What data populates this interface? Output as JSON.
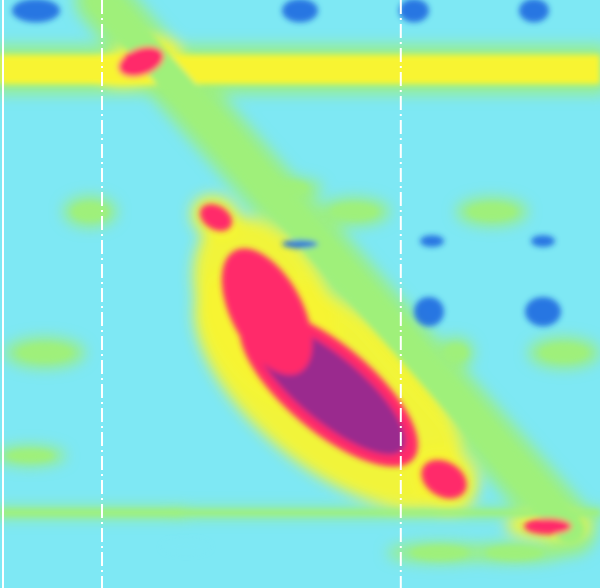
{
  "chart_data": {
    "type": "heatmap",
    "title": "",
    "xlabel": "",
    "ylabel": "",
    "legend": "none",
    "grid": false,
    "colormap": [
      {
        "level": 0,
        "color": "#1e6ae0"
      },
      {
        "level": 0.2,
        "color": "#58c8f0"
      },
      {
        "level": 0.32,
        "color": "#7ee8f4"
      },
      {
        "level": 0.55,
        "color": "#9ff07a"
      },
      {
        "level": 0.7,
        "color": "#f8f430"
      },
      {
        "level": 0.82,
        "color": "#ff2a6a"
      },
      {
        "level": 1,
        "color": "#9a2a8e"
      }
    ],
    "vertical_markers": [
      {
        "x": 0.005,
        "style": "solid",
        "color": "#ffffff"
      },
      {
        "x": 0.17,
        "style": "dashed",
        "color": "#ffffff"
      },
      {
        "x": 0.668,
        "style": "dashed",
        "color": "#ffffff"
      }
    ],
    "features": [
      {
        "kind": "band",
        "x0": 0.0,
        "x1": 1.0,
        "y": 0.118,
        "thickness": 0.05,
        "level": 0.72
      },
      {
        "kind": "band",
        "x0": 0.0,
        "x1": 0.3,
        "y": 0.872,
        "thickness": 0.012,
        "level": 0.66
      },
      {
        "kind": "band",
        "x0": 0.3,
        "x1": 1.0,
        "y": 0.872,
        "thickness": 0.01,
        "level": 0.55
      },
      {
        "kind": "diagonal",
        "x0": 0.17,
        "y0": 0.0,
        "x1": 0.95,
        "y1": 0.9,
        "thickness": 0.035,
        "level": 0.62
      },
      {
        "kind": "blob",
        "x": 0.548,
        "y": 0.66,
        "rx": 0.16,
        "ry": 0.055,
        "angle": 40,
        "level": 1.0
      },
      {
        "kind": "blob",
        "x": 0.445,
        "y": 0.53,
        "rx": 0.1,
        "ry": 0.045,
        "angle": 62,
        "level": 0.95
      },
      {
        "kind": "blob",
        "x": 0.235,
        "y": 0.105,
        "rx": 0.02,
        "ry": 0.03,
        "angle": 70,
        "level": 0.96
      },
      {
        "kind": "blob",
        "x": 0.36,
        "y": 0.37,
        "rx": 0.025,
        "ry": 0.015,
        "angle": 30,
        "level": 0.86
      },
      {
        "kind": "blob",
        "x": 0.74,
        "y": 0.815,
        "rx": 0.035,
        "ry": 0.022,
        "angle": 30,
        "level": 0.84
      },
      {
        "kind": "blob",
        "x": 0.913,
        "y": 0.895,
        "rx": 0.012,
        "ry": 0.03,
        "angle": 90,
        "level": 0.86
      },
      {
        "kind": "blob",
        "x": 0.06,
        "y": 0.018,
        "rx": 0.04,
        "ry": 0.02,
        "angle": 0,
        "level": 0.05
      },
      {
        "kind": "blob",
        "x": 0.5,
        "y": 0.018,
        "rx": 0.03,
        "ry": 0.02,
        "angle": 0,
        "level": 0.05
      },
      {
        "kind": "blob",
        "x": 0.69,
        "y": 0.018,
        "rx": 0.025,
        "ry": 0.02,
        "angle": 0,
        "level": 0.05
      },
      {
        "kind": "blob",
        "x": 0.89,
        "y": 0.018,
        "rx": 0.025,
        "ry": 0.02,
        "angle": 0,
        "level": 0.05
      },
      {
        "kind": "blob",
        "x": 0.715,
        "y": 0.53,
        "rx": 0.025,
        "ry": 0.025,
        "angle": 0,
        "level": 0.1
      },
      {
        "kind": "blob",
        "x": 0.905,
        "y": 0.53,
        "rx": 0.03,
        "ry": 0.025,
        "angle": 0,
        "level": 0.1
      },
      {
        "kind": "blob",
        "x": 0.72,
        "y": 0.41,
        "rx": 0.02,
        "ry": 0.01,
        "angle": 0,
        "level": 0.12
      },
      {
        "kind": "blob",
        "x": 0.905,
        "y": 0.41,
        "rx": 0.02,
        "ry": 0.01,
        "angle": 0,
        "level": 0.12
      },
      {
        "kind": "blob",
        "x": 0.5,
        "y": 0.415,
        "rx": 0.03,
        "ry": 0.007,
        "angle": 0,
        "level": 0.14
      },
      {
        "kind": "blob",
        "x": 0.075,
        "y": 0.6,
        "rx": 0.045,
        "ry": 0.015,
        "angle": 0,
        "level": 0.62
      },
      {
        "kind": "blob",
        "x": 0.15,
        "y": 0.36,
        "rx": 0.03,
        "ry": 0.015,
        "angle": 0,
        "level": 0.58
      },
      {
        "kind": "blob",
        "x": 0.76,
        "y": 0.6,
        "rx": 0.02,
        "ry": 0.015,
        "angle": 0,
        "level": 0.62
      },
      {
        "kind": "blob",
        "x": 0.94,
        "y": 0.6,
        "rx": 0.04,
        "ry": 0.015,
        "angle": 0,
        "level": 0.6
      },
      {
        "kind": "blob",
        "x": 0.82,
        "y": 0.36,
        "rx": 0.04,
        "ry": 0.014,
        "angle": 0,
        "level": 0.58
      },
      {
        "kind": "blob",
        "x": 0.59,
        "y": 0.36,
        "rx": 0.04,
        "ry": 0.014,
        "angle": 0,
        "level": 0.58
      },
      {
        "kind": "blob",
        "x": 0.05,
        "y": 0.775,
        "rx": 0.04,
        "ry": 0.01,
        "angle": 0,
        "level": 0.55
      },
      {
        "kind": "blob",
        "x": 0.31,
        "y": 0.93,
        "rx": 0.012,
        "ry": 0.04,
        "angle": 90,
        "level": 0.5
      },
      {
        "kind": "blob",
        "x": 0.733,
        "y": 0.94,
        "rx": 0.012,
        "ry": 0.05,
        "angle": 90,
        "level": 0.55
      },
      {
        "kind": "blob",
        "x": 0.858,
        "y": 0.94,
        "rx": 0.012,
        "ry": 0.05,
        "angle": 90,
        "level": 0.55
      },
      {
        "kind": "blob",
        "x": 0.485,
        "y": 0.32,
        "rx": 0.012,
        "ry": 0.03,
        "angle": 90,
        "level": 0.66
      }
    ]
  }
}
